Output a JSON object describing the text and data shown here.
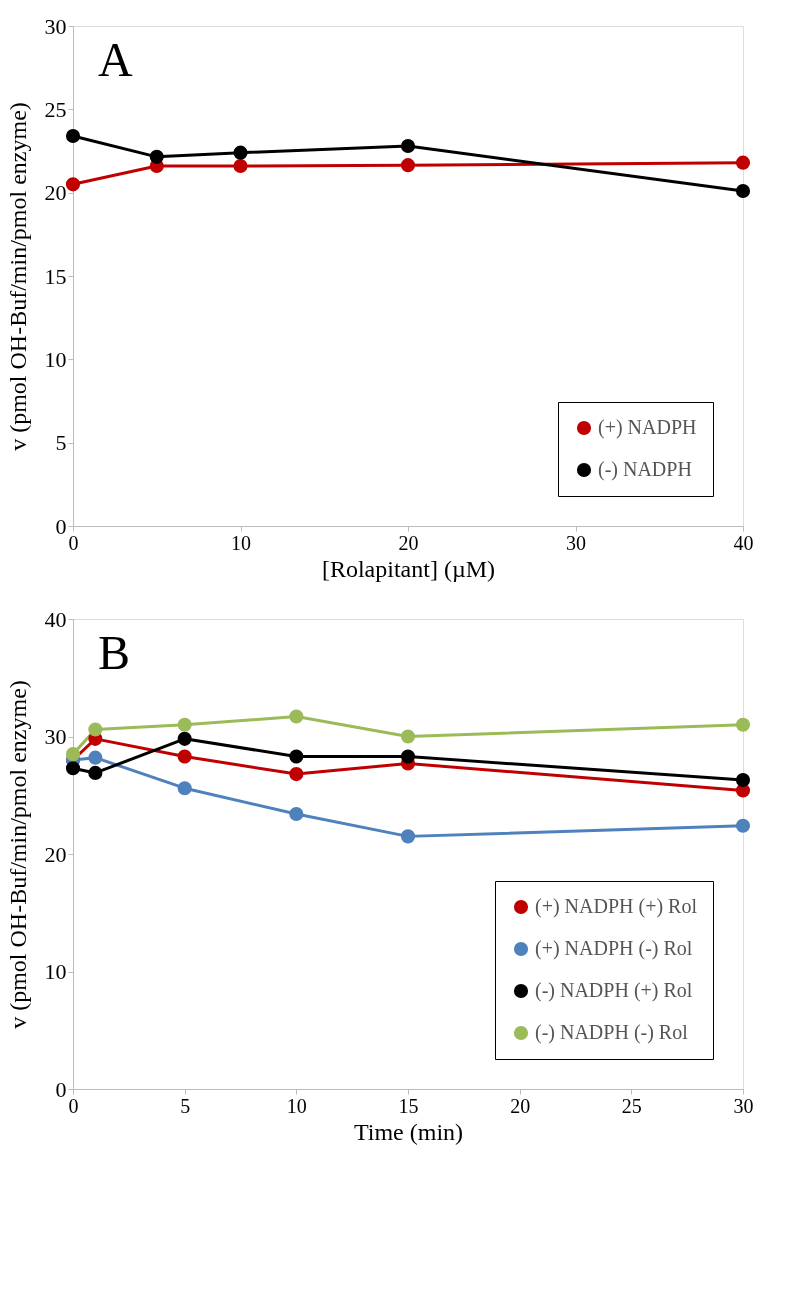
{
  "chart_data": [
    {
      "type": "line",
      "annotations": [
        "A"
      ],
      "xlabel": "[Rolapitant] (µM)",
      "ylabel": "v (pmol OH-Buf/min/pmol enzyme)",
      "x": [
        0,
        5,
        10,
        20,
        40
      ],
      "xlim": [
        0,
        40
      ],
      "xticks": [
        0,
        10,
        20,
        30,
        40
      ],
      "ylim": [
        0,
        30
      ],
      "yticks": [
        0,
        5,
        10,
        15,
        20,
        25,
        30
      ],
      "grid": false,
      "legend": "bottom right",
      "marker": "circle",
      "line_style": "solid",
      "series": [
        {
          "name": "(+) NADPH",
          "color": "#c00000",
          "values": [
            20.5,
            21.6,
            21.6,
            21.65,
            21.8
          ]
        },
        {
          "name": "(-) NADPH",
          "color": "#000000",
          "values": [
            23.4,
            22.15,
            22.4,
            22.8,
            20.1
          ]
        }
      ]
    },
    {
      "type": "line",
      "annotations": [
        "B"
      ],
      "xlabel": "Time (min)",
      "ylabel": "v (pmol OH-Buf/min/pmol enzyme)",
      "x": [
        0,
        1,
        5,
        10,
        15,
        30
      ],
      "xlim": [
        0,
        30
      ],
      "xticks": [
        0,
        5,
        10,
        15,
        20,
        25,
        30
      ],
      "ylim": [
        0,
        40
      ],
      "yticks": [
        0,
        10,
        20,
        30,
        40
      ],
      "grid": false,
      "legend": "bottom right",
      "marker": "circle",
      "line_style": "solid",
      "series": [
        {
          "name": "(+) NADPH (+) Rol",
          "color": "#c00000",
          "values": [
            28.0,
            29.8,
            28.3,
            26.8,
            27.7,
            25.4
          ]
        },
        {
          "name": "(+) NADPH (-) Rol",
          "color": "#4f81bd",
          "values": [
            28.0,
            28.2,
            25.6,
            23.4,
            21.5,
            22.4
          ]
        },
        {
          "name": "(-) NADPH (+) Rol",
          "color": "#000000",
          "values": [
            27.3,
            26.9,
            29.8,
            28.3,
            28.3,
            26.3
          ]
        },
        {
          "name": "(-) NADPH (-) Rol",
          "color": "#9bbb59",
          "values": [
            28.5,
            30.6,
            31.0,
            31.7,
            30.0,
            31.0
          ]
        }
      ]
    }
  ]
}
